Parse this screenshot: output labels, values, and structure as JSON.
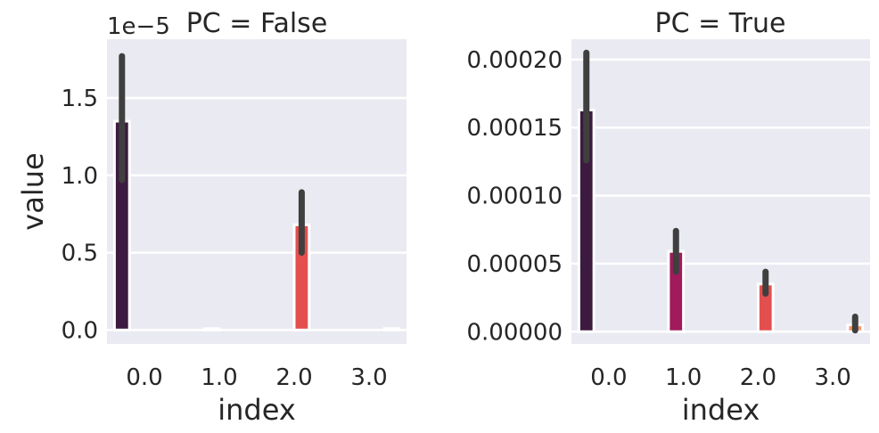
{
  "chart_data": {
    "type": "bar",
    "ylabel": "value",
    "grid": true,
    "panels": [
      {
        "title": "PC = False",
        "offset_text": "1e−5",
        "xlabel": "index",
        "x_ticks": [
          "0.0",
          "1.0",
          "2.0",
          "3.0"
        ],
        "y_ticks": [
          "0.0",
          "0.5",
          "1.0",
          "1.5"
        ],
        "ylim": [
          -9e-07,
          1.88e-05
        ],
        "bars": [
          {
            "x": "0.0",
            "value": 1.35e-05,
            "err_low": 9.7e-06,
            "err_high": 1.77e-05,
            "color": "#3d1b40"
          },
          {
            "x": "1.0",
            "value": 0.0,
            "err_low": 0.0,
            "err_high": 0.0,
            "color": "#a11a5b"
          },
          {
            "x": "2.0",
            "value": 6.8e-06,
            "err_low": 5e-06,
            "err_high": 8.9e-06,
            "color": "#e34f4f"
          },
          {
            "x": "3.0",
            "value": 0.0,
            "err_low": 0.0,
            "err_high": 0.0,
            "color": "#f5966b"
          }
        ]
      },
      {
        "title": "PC = True",
        "offset_text": "",
        "xlabel": "index",
        "x_ticks": [
          "0.0",
          "1.0",
          "2.0",
          "3.0"
        ],
        "y_ticks": [
          "0.00000",
          "0.00005",
          "0.00010",
          "0.00015",
          "0.00020"
        ],
        "ylim": [
          -9e-06,
          0.000215
        ],
        "bars": [
          {
            "x": "0.0",
            "value": 0.000163,
            "err_low": 0.000126,
            "err_high": 0.000205,
            "color": "#3d1b40"
          },
          {
            "x": "1.0",
            "value": 5.9e-05,
            "err_low": 4.4e-05,
            "err_high": 7.4e-05,
            "color": "#a11a5b"
          },
          {
            "x": "2.0",
            "value": 3.5e-05,
            "err_low": 2.8e-05,
            "err_high": 4.4e-05,
            "color": "#e34f4f"
          },
          {
            "x": "3.0",
            "value": 5e-06,
            "err_low": 1e-06,
            "err_high": 1.1e-05,
            "color": "#f5966b"
          }
        ]
      }
    ]
  },
  "colors": {
    "axes_bg": "#eaeaf2",
    "grid": "#ffffff",
    "text": "#262626",
    "errorbar": "#3f3f3f"
  }
}
